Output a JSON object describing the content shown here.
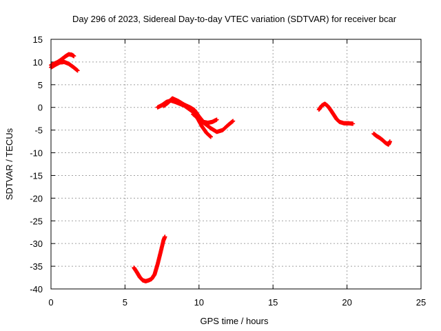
{
  "chart_data": {
    "type": "scatter",
    "title": "Day 296 of 2023, Sidereal Day-to-day VTEC variation (SDTVAR) for receiver bcar",
    "xlabel": "GPS time / hours",
    "ylabel": "SDTVAR / TECUs",
    "xlim": [
      0,
      25
    ],
    "ylim": [
      -40,
      15
    ],
    "xticks": [
      0,
      5,
      10,
      15,
      20,
      25
    ],
    "yticks": [
      15,
      10,
      5,
      0,
      -5,
      -10,
      -15,
      -20,
      -25,
      -30,
      -35,
      -40
    ],
    "grid": true,
    "marker": "plus",
    "color": "#ff0000",
    "series": [
      {
        "name": "arc1a",
        "x": [
          0.0,
          0.3,
          0.6,
          0.9,
          1.2,
          1.5,
          1.8
        ],
        "y": [
          8.8,
          9.4,
          9.9,
          10.0,
          9.6,
          8.9,
          8.1
        ]
      },
      {
        "name": "arc1b",
        "x": [
          0.0,
          0.2,
          0.4,
          0.6,
          0.8,
          1.0,
          1.2,
          1.4,
          1.55
        ],
        "y": [
          9.3,
          9.6,
          9.9,
          10.3,
          10.8,
          11.3,
          11.7,
          11.6,
          11.3
        ]
      },
      {
        "name": "arc2a",
        "x": [
          7.2,
          7.5,
          7.8,
          8.1,
          8.4,
          8.7,
          9.0,
          9.3,
          9.6,
          9.9,
          10.2,
          10.5,
          10.8
        ],
        "y": [
          0.0,
          0.5,
          1.2,
          1.5,
          1.2,
          0.8,
          0.4,
          -0.3,
          -1.0,
          -2.4,
          -4.2,
          -5.6,
          -6.5
        ]
      },
      {
        "name": "arc2b",
        "x": [
          7.6,
          7.9,
          8.2,
          8.6,
          9.0,
          9.4,
          9.7,
          10.0,
          10.3,
          10.6,
          10.9,
          11.2
        ],
        "y": [
          0.3,
          1.0,
          2.0,
          1.4,
          0.6,
          0.0,
          -0.6,
          -2.0,
          -3.2,
          -3.4,
          -3.2,
          -2.7
        ]
      },
      {
        "name": "arc2c",
        "x": [
          9.6,
          10.0,
          10.4,
          10.8,
          11.2,
          11.6,
          12.0,
          12.3
        ],
        "y": [
          -1.5,
          -2.6,
          -3.6,
          -4.6,
          -5.4,
          -5.0,
          -3.8,
          -3.0
        ]
      },
      {
        "name": "arc3",
        "x": [
          5.6,
          5.8,
          6.0,
          6.2,
          6.4,
          6.6,
          6.8,
          7.0,
          7.2,
          7.4,
          7.6,
          7.7
        ],
        "y": [
          -35.3,
          -36.3,
          -37.4,
          -38.1,
          -38.3,
          -38.1,
          -37.8,
          -36.8,
          -34.6,
          -32.0,
          -29.3,
          -28.5
        ]
      },
      {
        "name": "arc4",
        "x": [
          18.1,
          18.3,
          18.5,
          18.7,
          18.9,
          19.1,
          19.3,
          19.5,
          19.8,
          20.1,
          20.4
        ],
        "y": [
          -0.5,
          0.4,
          0.8,
          0.3,
          -0.6,
          -1.6,
          -2.6,
          -3.2,
          -3.5,
          -3.5,
          -3.6
        ]
      },
      {
        "name": "arc5",
        "x": [
          21.8,
          22.0,
          22.2,
          22.4,
          22.6,
          22.8,
          22.9
        ],
        "y": [
          -5.8,
          -6.3,
          -6.7,
          -7.2,
          -7.8,
          -8.2,
          -7.5
        ]
      }
    ]
  }
}
